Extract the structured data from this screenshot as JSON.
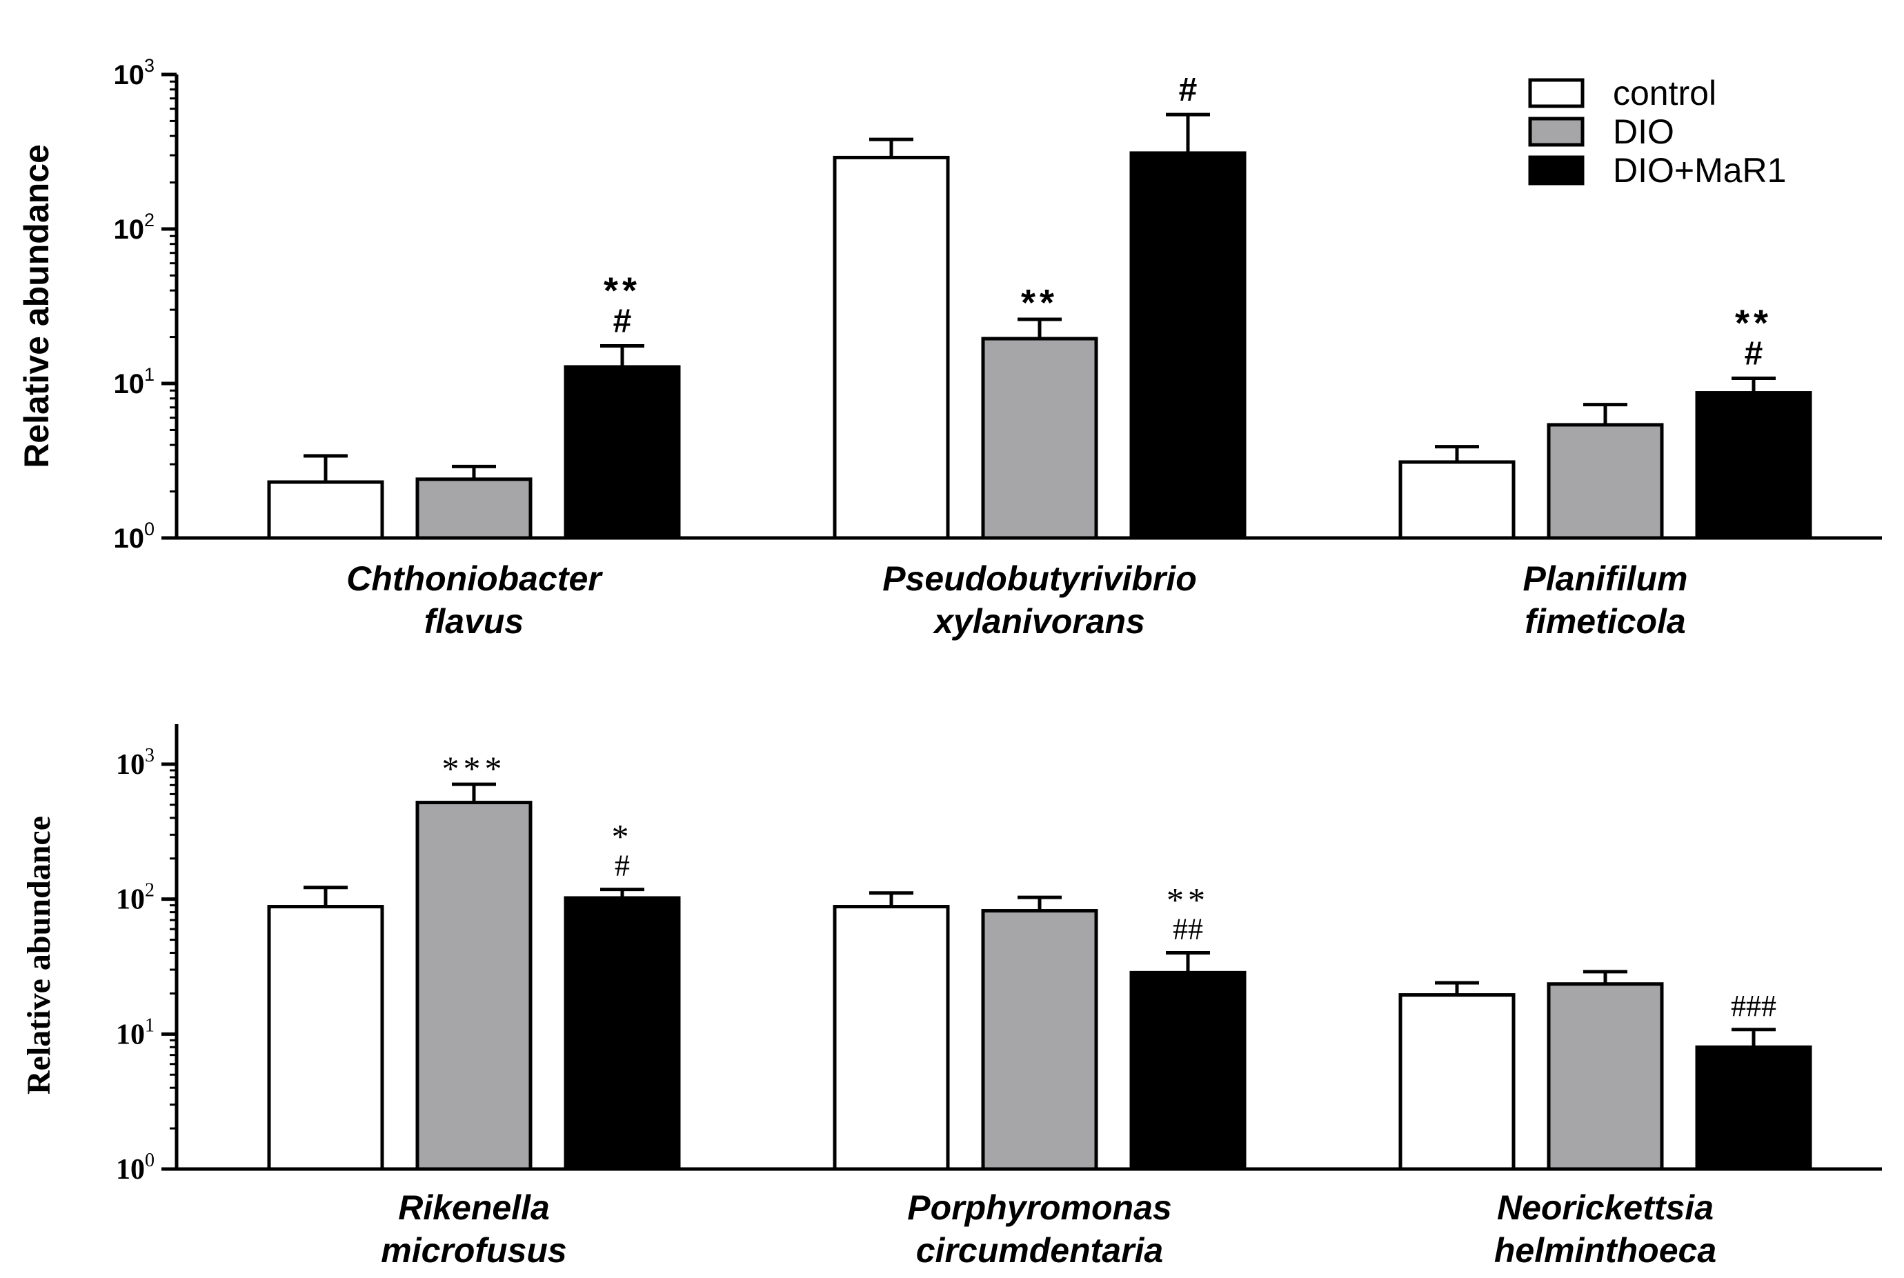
{
  "colors": {
    "control": "#ffffff",
    "DIO": "#a6a6a8",
    "DIO+MaR1": "#000000",
    "axis": "#000000"
  },
  "legend": {
    "entries": [
      "control",
      "DIO",
      "DIO+MaR1"
    ],
    "position": "top-right"
  },
  "chart_data": [
    {
      "type": "bar",
      "yscale": "log",
      "ylabel": "Relative abundance",
      "ylim": [
        1,
        1000
      ],
      "ytick_values": [
        1,
        10,
        100,
        1000
      ],
      "ytick_labels": [
        {
          "base": "10",
          "exp": "0"
        },
        {
          "base": "10",
          "exp": "1"
        },
        {
          "base": "10",
          "exp": "2"
        },
        {
          "base": "10",
          "exp": "3"
        }
      ],
      "categories": [
        [
          "Chthoniobacter",
          "flavus"
        ],
        [
          "Pseudobutyrivibrio",
          "xylanivorans"
        ],
        [
          "Planifilum",
          "fimeticola"
        ]
      ],
      "series": [
        {
          "name": "control",
          "values": [
            2.3,
            290,
            3.1
          ],
          "error_upper": [
            3.4,
            380,
            3.9
          ]
        },
        {
          "name": "DIO",
          "values": [
            2.4,
            19.5,
            5.4
          ],
          "error_upper": [
            2.9,
            26,
            7.3
          ]
        },
        {
          "name": "DIO+MaR1",
          "values": [
            12.8,
            310,
            8.7
          ],
          "error_upper": [
            17.5,
            550,
            10.8
          ]
        }
      ],
      "annotations": [
        {
          "category": 0,
          "series": 2,
          "lines": [
            "**",
            "#"
          ]
        },
        {
          "category": 1,
          "series": 1,
          "lines": [
            "**"
          ]
        },
        {
          "category": 1,
          "series": 2,
          "lines": [
            "#"
          ]
        },
        {
          "category": 2,
          "series": 2,
          "lines": [
            "**",
            "#"
          ]
        }
      ]
    },
    {
      "type": "bar",
      "yscale": "log",
      "ylabel": "Relative abundance",
      "ylim": [
        1,
        2000
      ],
      "ytick_values": [
        1,
        10,
        100,
        1000
      ],
      "ytick_labels": [
        {
          "base": "10",
          "exp": "0"
        },
        {
          "base": "10",
          "exp": "1"
        },
        {
          "base": "10",
          "exp": "2"
        },
        {
          "base": "10",
          "exp": "3"
        }
      ],
      "categories": [
        [
          "Rikenella",
          "microfusus"
        ],
        [
          "Porphyromonas",
          "circumdentaria"
        ],
        [
          "Neorickettsia",
          "helminthoeca"
        ]
      ],
      "series": [
        {
          "name": "control",
          "values": [
            88,
            88,
            19.5
          ],
          "error_upper": [
            122,
            111,
            24
          ]
        },
        {
          "name": "DIO",
          "values": [
            520,
            82,
            23.5
          ],
          "error_upper": [
            710,
            103,
            29
          ]
        },
        {
          "name": "DIO+MaR1",
          "values": [
            102,
            28.5,
            8
          ],
          "error_upper": [
            118,
            40,
            10.8
          ]
        }
      ],
      "annotations": [
        {
          "category": 0,
          "series": 1,
          "lines": [
            "***"
          ]
        },
        {
          "category": 0,
          "series": 2,
          "lines": [
            "*",
            "#"
          ]
        },
        {
          "category": 1,
          "series": 2,
          "lines": [
            "**",
            "##"
          ]
        },
        {
          "category": 2,
          "series": 2,
          "lines": [
            "###"
          ]
        }
      ]
    }
  ]
}
